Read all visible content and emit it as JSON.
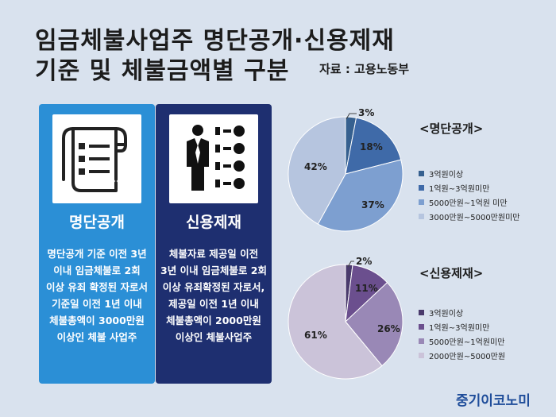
{
  "header": {
    "title_line1": "임금체불사업주 명단공개·신용제재",
    "title_line2": "기준 및 체불금액별 구분",
    "source": "자료 : 고용노동부"
  },
  "cards": [
    {
      "icon": "document-list-icon",
      "title": "명단공개",
      "body": "명단공개 기준 이전 3년 이내 임금체불로 2회 이상 유죄 확정된 자로서 기준일 이전 1년 이내 체불총액이 3000만원 이상인 체불 사업주"
    },
    {
      "icon": "person-checklist-icon",
      "title": "신용제재",
      "body": "체불자료 제공일 이전 3년 이내 임금체불로 2회 이상 유죄확정된 자로서, 제공일 이전 1년 이내 체불총액이 2000만원 이상인 체불사업주"
    }
  ],
  "colors": {
    "card1_bg": "#2b8fd6",
    "card2_bg": "#1e2f70",
    "brand": "#1f4d9a"
  },
  "chart_data": [
    {
      "type": "pie",
      "title": "<명단공개>",
      "categories": [
        "3억원이상",
        "1억원~3억원미만",
        "5000만원~1억원 미만",
        "3000만원~5000만원미만"
      ],
      "values": [
        3,
        18,
        37,
        42
      ],
      "value_labels": [
        "3%",
        "18%",
        "37%",
        "42%"
      ],
      "colors": [
        "#36608f",
        "#3f6aa8",
        "#7d9fd0",
        "#b6c5df"
      ],
      "legend_position": "right"
    },
    {
      "type": "pie",
      "title": "<신용제재>",
      "categories": [
        "3억원이상",
        "1억원~3억원미만",
        "5000만원~1억원미만",
        "2000만원~5000만원"
      ],
      "values": [
        2,
        11,
        26,
        61
      ],
      "value_labels": [
        "2%",
        "11%",
        "26%",
        "61%"
      ],
      "colors": [
        "#4a3a6c",
        "#6b4f8e",
        "#9988b6",
        "#cbc3d9"
      ],
      "legend_position": "right"
    }
  ],
  "brand": "중기이코노미"
}
